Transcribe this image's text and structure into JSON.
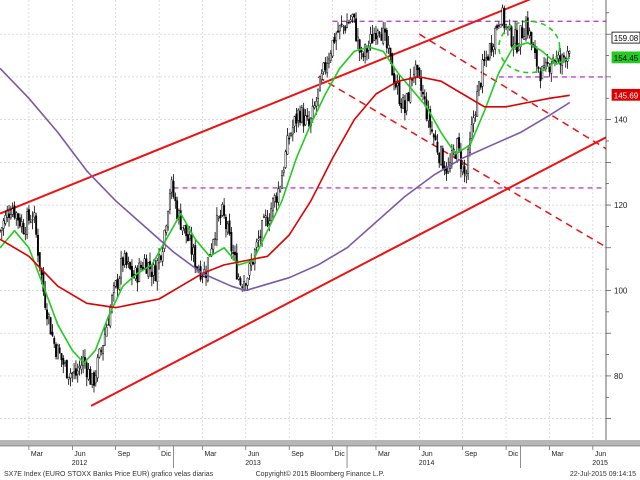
{
  "chart_data": {
    "type": "candlestick",
    "grid": true,
    "ylim": [
      65,
      168
    ],
    "y_ticks": [
      80,
      100,
      120,
      140
    ],
    "x_month_labels": [
      {
        "label": "Mar",
        "month": 2
      },
      {
        "label": "Jun",
        "month": 5
      },
      {
        "label": "Sep",
        "month": 8
      },
      {
        "label": "Dic",
        "month": 11
      },
      {
        "label": "Mar",
        "month": 14
      },
      {
        "label": "Jun",
        "month": 17
      },
      {
        "label": "Sep",
        "month": 20
      },
      {
        "label": "Dic",
        "month": 23
      },
      {
        "label": "Mar",
        "month": 26
      },
      {
        "label": "Jun",
        "month": 29
      },
      {
        "label": "Sep",
        "month": 32
      },
      {
        "label": "Dic",
        "month": 35
      },
      {
        "label": "Mar",
        "month": 38
      },
      {
        "label": "Jun",
        "month": 41
      }
    ],
    "x_year_labels": [
      {
        "label": "2012",
        "month": 5.5
      },
      {
        "label": "2013",
        "month": 17.5
      },
      {
        "label": "2014",
        "month": 29.5
      },
      {
        "label": "2015",
        "month": 41.5
      }
    ],
    "price_anchors": [
      {
        "m": 0.0,
        "v": 114
      },
      {
        "m": 0.8,
        "v": 120
      },
      {
        "m": 1.6,
        "v": 115
      },
      {
        "m": 2.3,
        "v": 118
      },
      {
        "m": 3.0,
        "v": 100
      },
      {
        "m": 3.7,
        "v": 88
      },
      {
        "m": 4.5,
        "v": 82
      },
      {
        "m": 5.2,
        "v": 80
      },
      {
        "m": 5.8,
        "v": 84
      },
      {
        "m": 6.4,
        "v": 78
      },
      {
        "m": 7.0,
        "v": 86
      },
      {
        "m": 7.7,
        "v": 97
      },
      {
        "m": 8.5,
        "v": 107
      },
      {
        "m": 9.3,
        "v": 103
      },
      {
        "m": 10.0,
        "v": 107
      },
      {
        "m": 10.7,
        "v": 104
      },
      {
        "m": 11.3,
        "v": 112
      },
      {
        "m": 11.8,
        "v": 125
      },
      {
        "m": 12.3,
        "v": 118
      },
      {
        "m": 13.0,
        "v": 112
      },
      {
        "m": 13.6,
        "v": 106
      },
      {
        "m": 14.2,
        "v": 104
      },
      {
        "m": 14.8,
        "v": 114
      },
      {
        "m": 15.4,
        "v": 118
      },
      {
        "m": 16.0,
        "v": 110
      },
      {
        "m": 16.6,
        "v": 102
      },
      {
        "m": 17.2,
        "v": 104
      },
      {
        "m": 17.9,
        "v": 112
      },
      {
        "m": 18.6,
        "v": 118
      },
      {
        "m": 19.3,
        "v": 124
      },
      {
        "m": 20.0,
        "v": 136
      },
      {
        "m": 20.7,
        "v": 142
      },
      {
        "m": 21.4,
        "v": 138
      },
      {
        "m": 22.0,
        "v": 146
      },
      {
        "m": 22.6,
        "v": 154
      },
      {
        "m": 23.2,
        "v": 160
      },
      {
        "m": 23.8,
        "v": 162
      },
      {
        "m": 24.4,
        "v": 164
      },
      {
        "m": 25.0,
        "v": 154
      },
      {
        "m": 25.6,
        "v": 158
      },
      {
        "m": 26.2,
        "v": 163
      },
      {
        "m": 26.8,
        "v": 156
      },
      {
        "m": 27.4,
        "v": 148
      },
      {
        "m": 28.0,
        "v": 142
      },
      {
        "m": 28.6,
        "v": 152
      },
      {
        "m": 29.2,
        "v": 146
      },
      {
        "m": 29.8,
        "v": 138
      },
      {
        "m": 30.4,
        "v": 132
      },
      {
        "m": 31.0,
        "v": 128
      },
      {
        "m": 31.6,
        "v": 134
      },
      {
        "m": 32.2,
        "v": 126
      },
      {
        "m": 32.8,
        "v": 142
      },
      {
        "m": 33.4,
        "v": 152
      },
      {
        "m": 34.0,
        "v": 158
      },
      {
        "m": 34.6,
        "v": 165
      },
      {
        "m": 35.2,
        "v": 160
      },
      {
        "m": 35.8,
        "v": 158
      },
      {
        "m": 36.4,
        "v": 163
      },
      {
        "m": 37.0,
        "v": 154
      },
      {
        "m": 37.6,
        "v": 150
      },
      {
        "m": 38.2,
        "v": 155
      },
      {
        "m": 38.8,
        "v": 153
      },
      {
        "m": 39.4,
        "v": 158
      }
    ],
    "series": [
      {
        "name": "",
        "color": "#22cc22",
        "values": [
          {
            "m": 0.0,
            "v": 110
          },
          {
            "m": 1.0,
            "v": 114
          },
          {
            "m": 2.0,
            "v": 110
          },
          {
            "m": 3.0,
            "v": 101
          },
          {
            "m": 4.0,
            "v": 92
          },
          {
            "m": 5.0,
            "v": 86
          },
          {
            "m": 5.8,
            "v": 83
          },
          {
            "m": 6.6,
            "v": 86
          },
          {
            "m": 7.5,
            "v": 94
          },
          {
            "m": 8.5,
            "v": 101
          },
          {
            "m": 9.5,
            "v": 104
          },
          {
            "m": 10.5,
            "v": 106
          },
          {
            "m": 11.5,
            "v": 112
          },
          {
            "m": 12.5,
            "v": 118
          },
          {
            "m": 13.5,
            "v": 112
          },
          {
            "m": 14.5,
            "v": 108
          },
          {
            "m": 15.5,
            "v": 110
          },
          {
            "m": 16.5,
            "v": 106
          },
          {
            "m": 17.5,
            "v": 107
          },
          {
            "m": 18.5,
            "v": 114
          },
          {
            "m": 19.5,
            "v": 121
          },
          {
            "m": 20.5,
            "v": 131
          },
          {
            "m": 21.5,
            "v": 139
          },
          {
            "m": 22.5,
            "v": 146
          },
          {
            "m": 23.5,
            "v": 152
          },
          {
            "m": 24.5,
            "v": 156
          },
          {
            "m": 25.5,
            "v": 157
          },
          {
            "m": 26.5,
            "v": 156
          },
          {
            "m": 27.5,
            "v": 151
          },
          {
            "m": 28.5,
            "v": 147
          },
          {
            "m": 29.5,
            "v": 143
          },
          {
            "m": 30.5,
            "v": 137
          },
          {
            "m": 31.5,
            "v": 132
          },
          {
            "m": 32.5,
            "v": 134
          },
          {
            "m": 33.5,
            "v": 142
          },
          {
            "m": 34.5,
            "v": 151
          },
          {
            "m": 35.5,
            "v": 157
          },
          {
            "m": 36.5,
            "v": 158
          },
          {
            "m": 37.5,
            "v": 156
          },
          {
            "m": 38.5,
            "v": 153
          },
          {
            "m": 39.4,
            "v": 154.45
          }
        ]
      },
      {
        "name": "",
        "color": "#dd0000",
        "values": [
          {
            "m": 0.0,
            "v": 112
          },
          {
            "m": 2.0,
            "v": 108
          },
          {
            "m": 4.0,
            "v": 101
          },
          {
            "m": 6.0,
            "v": 97
          },
          {
            "m": 8.0,
            "v": 96
          },
          {
            "m": 9.5,
            "v": 97
          },
          {
            "m": 11.0,
            "v": 98
          },
          {
            "m": 12.5,
            "v": 101
          },
          {
            "m": 14.0,
            "v": 104
          },
          {
            "m": 15.5,
            "v": 106
          },
          {
            "m": 17.0,
            "v": 107
          },
          {
            "m": 18.5,
            "v": 108
          },
          {
            "m": 20.0,
            "v": 113
          },
          {
            "m": 21.5,
            "v": 121
          },
          {
            "m": 23.0,
            "v": 131
          },
          {
            "m": 24.5,
            "v": 140
          },
          {
            "m": 26.0,
            "v": 146
          },
          {
            "m": 27.5,
            "v": 149
          },
          {
            "m": 29.0,
            "v": 150
          },
          {
            "m": 30.5,
            "v": 149
          },
          {
            "m": 32.0,
            "v": 146
          },
          {
            "m": 33.5,
            "v": 143
          },
          {
            "m": 35.0,
            "v": 143
          },
          {
            "m": 36.5,
            "v": 144
          },
          {
            "m": 38.0,
            "v": 145
          },
          {
            "m": 39.4,
            "v": 145.69
          }
        ]
      },
      {
        "name": "",
        "color": "#7a5aa8",
        "values": [
          {
            "m": 0.0,
            "v": 152
          },
          {
            "m": 2.0,
            "v": 145
          },
          {
            "m": 4.0,
            "v": 137
          },
          {
            "m": 6.0,
            "v": 128
          },
          {
            "m": 8.0,
            "v": 121
          },
          {
            "m": 10.0,
            "v": 115
          },
          {
            "m": 12.0,
            "v": 109
          },
          {
            "m": 14.0,
            "v": 104
          },
          {
            "m": 16.0,
            "v": 101
          },
          {
            "m": 17.0,
            "v": 100
          },
          {
            "m": 18.0,
            "v": 101
          },
          {
            "m": 20.0,
            "v": 103
          },
          {
            "m": 22.0,
            "v": 106
          },
          {
            "m": 24.0,
            "v": 110
          },
          {
            "m": 26.0,
            "v": 116
          },
          {
            "m": 28.0,
            "v": 122
          },
          {
            "m": 30.0,
            "v": 127
          },
          {
            "m": 32.0,
            "v": 131
          },
          {
            "m": 34.0,
            "v": 134
          },
          {
            "m": 36.0,
            "v": 137
          },
          {
            "m": 38.0,
            "v": 141
          },
          {
            "m": 39.4,
            "v": 144
          }
        ]
      }
    ],
    "trendlines": [
      {
        "color": "#ee1111",
        "style": "solid",
        "from": {
          "m": 0.0,
          "v": 118
        },
        "to": {
          "m": 38.0,
          "v": 170
        }
      },
      {
        "color": "#ee1111",
        "style": "solid",
        "from": {
          "m": 6.3,
          "v": 73
        },
        "to": {
          "m": 42.0,
          "v": 136
        }
      },
      {
        "color": "#ee1111",
        "style": "dashed",
        "from": {
          "m": 29.0,
          "v": 160
        },
        "to": {
          "m": 42.0,
          "v": 133
        }
      },
      {
        "color": "#ee1111",
        "style": "dashed",
        "from": {
          "m": 22.0,
          "v": 150
        },
        "to": {
          "m": 42.0,
          "v": 110
        }
      }
    ],
    "hlines": [
      {
        "color": "#bb44cc",
        "style": "dashed",
        "value": 163,
        "from_m": 23.0,
        "to_m": 42.0
      },
      {
        "color": "#bb44cc",
        "style": "dashed",
        "value": 150,
        "from_m": 34.5,
        "to_m": 42.0
      },
      {
        "color": "#bb44cc",
        "style": "dashed",
        "value": 124,
        "from_m": 12.0,
        "to_m": 42.0
      }
    ],
    "ellipses": [
      {
        "color": "#22cc22",
        "style": "dashed",
        "center": {
          "m": 36.6,
          "v": 157
        },
        "radius_months": 2.1,
        "radius_value": 6
      }
    ],
    "last_values": [
      {
        "label": "159.08",
        "value": 159.08,
        "bg": "#ffffff",
        "fg": "#000000",
        "border": "#000000"
      },
      {
        "label": "154.45",
        "value": 154.45,
        "bg": "#22cc22",
        "fg": "#000000",
        "border": "#22cc22"
      },
      {
        "label": "145.69",
        "value": 145.69,
        "bg": "#dd0000",
        "fg": "#ffffff",
        "border": "#dd0000"
      }
    ]
  },
  "footer": {
    "left": "SX7E Index (EURO STOXX Banks Price EUR) grafico velas diarias",
    "center": "Copyright© 2015 Bloomberg Finance L.P.",
    "right": "22-Jul-2015 09:14:15"
  }
}
